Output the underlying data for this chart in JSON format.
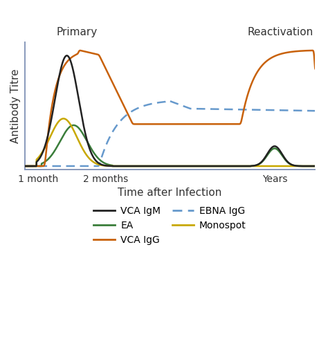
{
  "title_primary": "Primary",
  "title_reactivation": "Reactivation",
  "xlabel": "Time after Infection",
  "ylabel": "Antibody Titre",
  "xtick_labels": [
    "1 month",
    "2 months",
    "Years"
  ],
  "xtick_positions": [
    1.0,
    3.0,
    8.0
  ],
  "xlim": [
    0.6,
    9.2
  ],
  "ylim": [
    -0.03,
    1.12
  ],
  "background_color": "#ffffff",
  "spine_color": "#8899bb",
  "colors": {
    "vca_igm": "#222222",
    "vca_igg": "#c8610a",
    "monospot": "#c8a800",
    "ea": "#3a7d3a",
    "ebna_igg": "#6699cc"
  }
}
